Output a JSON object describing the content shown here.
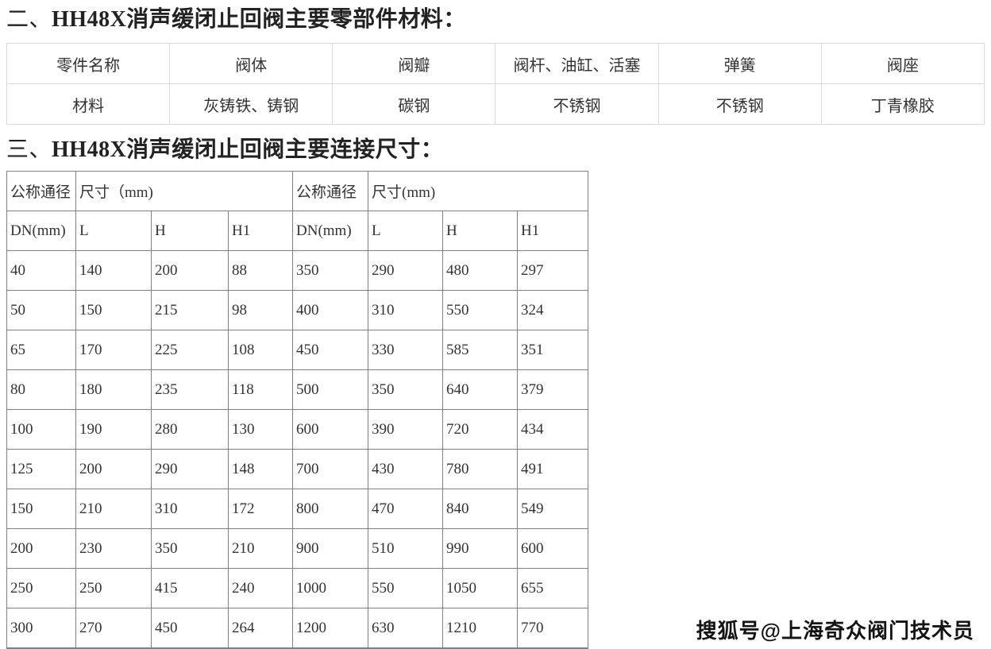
{
  "sections": {
    "materials": {
      "prefix": "二、",
      "title": "HH48X消声缓闭止回阀主要零部件材料："
    },
    "dimensions": {
      "prefix": "三、",
      "title": "HH48X消声缓闭止回阀主要连接尺寸："
    }
  },
  "materials_table": {
    "rows": [
      [
        "零件名称",
        "阀体",
        "阀瓣",
        "阀杆、油缸、活塞",
        "弹簧",
        "阀座"
      ],
      [
        "材料",
        "灰铸铁、铸钢",
        "碳钢",
        "不锈钢",
        "不锈钢",
        "丁青橡胶"
      ]
    ]
  },
  "dimensions_table": {
    "group_headers": [
      "公称通径",
      "尺寸（mm)",
      "公称通径",
      "尺寸(mm)"
    ],
    "col_headers": [
      "DN(mm)",
      "L",
      "H",
      "H1",
      "DN(mm)",
      "L",
      "H",
      "H1"
    ],
    "rows": [
      [
        "40",
        "140",
        "200",
        "88",
        "350",
        "290",
        "480",
        "297"
      ],
      [
        "50",
        "150",
        "215",
        "98",
        "400",
        "310",
        "550",
        "324"
      ],
      [
        "65",
        "170",
        "225",
        "108",
        "450",
        "330",
        "585",
        "351"
      ],
      [
        "80",
        "180",
        "235",
        "118",
        "500",
        "350",
        "640",
        "379"
      ],
      [
        "100",
        "190",
        "280",
        "130",
        "600",
        "390",
        "720",
        "434"
      ],
      [
        "125",
        "200",
        "290",
        "148",
        "700",
        "430",
        "780",
        "491"
      ],
      [
        "150",
        "210",
        "310",
        "172",
        "800",
        "470",
        "840",
        "549"
      ],
      [
        "200",
        "230",
        "350",
        "210",
        "900",
        "510",
        "990",
        "600"
      ],
      [
        "250",
        "250",
        "415",
        "240",
        "1000",
        "550",
        "1050",
        "655"
      ],
      [
        "300",
        "270",
        "450",
        "264",
        "1200",
        "630",
        "1210",
        "770"
      ]
    ]
  },
  "watermark": {
    "text": "搜狐号@上海奇众阀门技术员"
  },
  "colors": {
    "materials_table_border": "#d9d9d9",
    "dimensions_table_border": "#808080",
    "text": "#333333",
    "background": "#ffffff"
  }
}
